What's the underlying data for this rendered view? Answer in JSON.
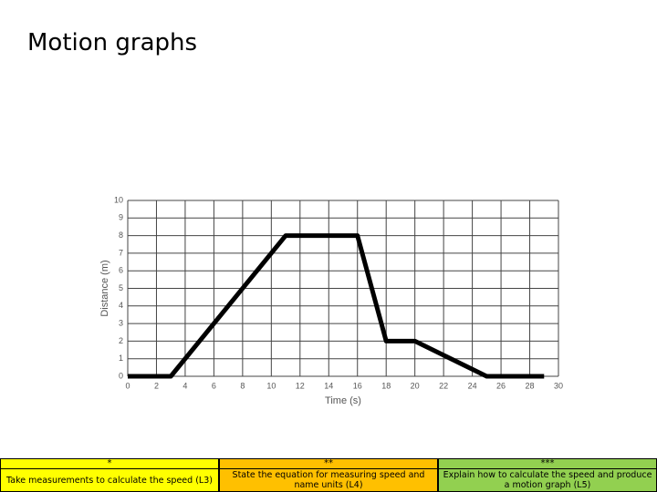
{
  "slide_title": "Motion graphs",
  "chart_data": {
    "type": "line",
    "x_label": "Time (s)",
    "y_label": "Distance (m)",
    "x": [
      0,
      3,
      11,
      16,
      18,
      20,
      25,
      29
    ],
    "values": [
      0,
      0,
      8,
      8,
      2,
      2,
      0,
      0
    ],
    "color": "#000000",
    "xlim": [
      0,
      30
    ],
    "xticks": [
      0,
      2,
      4,
      6,
      8,
      10,
      12,
      14,
      16,
      18,
      20,
      22,
      24,
      26,
      28,
      30
    ],
    "ylim": [
      0,
      10
    ],
    "yticks": [
      0,
      1,
      2,
      3,
      4,
      5,
      6,
      7,
      8,
      9,
      10
    ],
    "grid": true
  },
  "levels": [
    {
      "stars": "*",
      "text": "Take measurements to calculate the speed (L3)",
      "color": "#ffff00"
    },
    {
      "stars": "**",
      "text": "State the equation for measuring speed and name units (L4)",
      "color": "#ffc000"
    },
    {
      "stars": "***",
      "text": "Explain how to calculate the speed and produce a motion graph (L5)",
      "color": "#92d050"
    }
  ]
}
